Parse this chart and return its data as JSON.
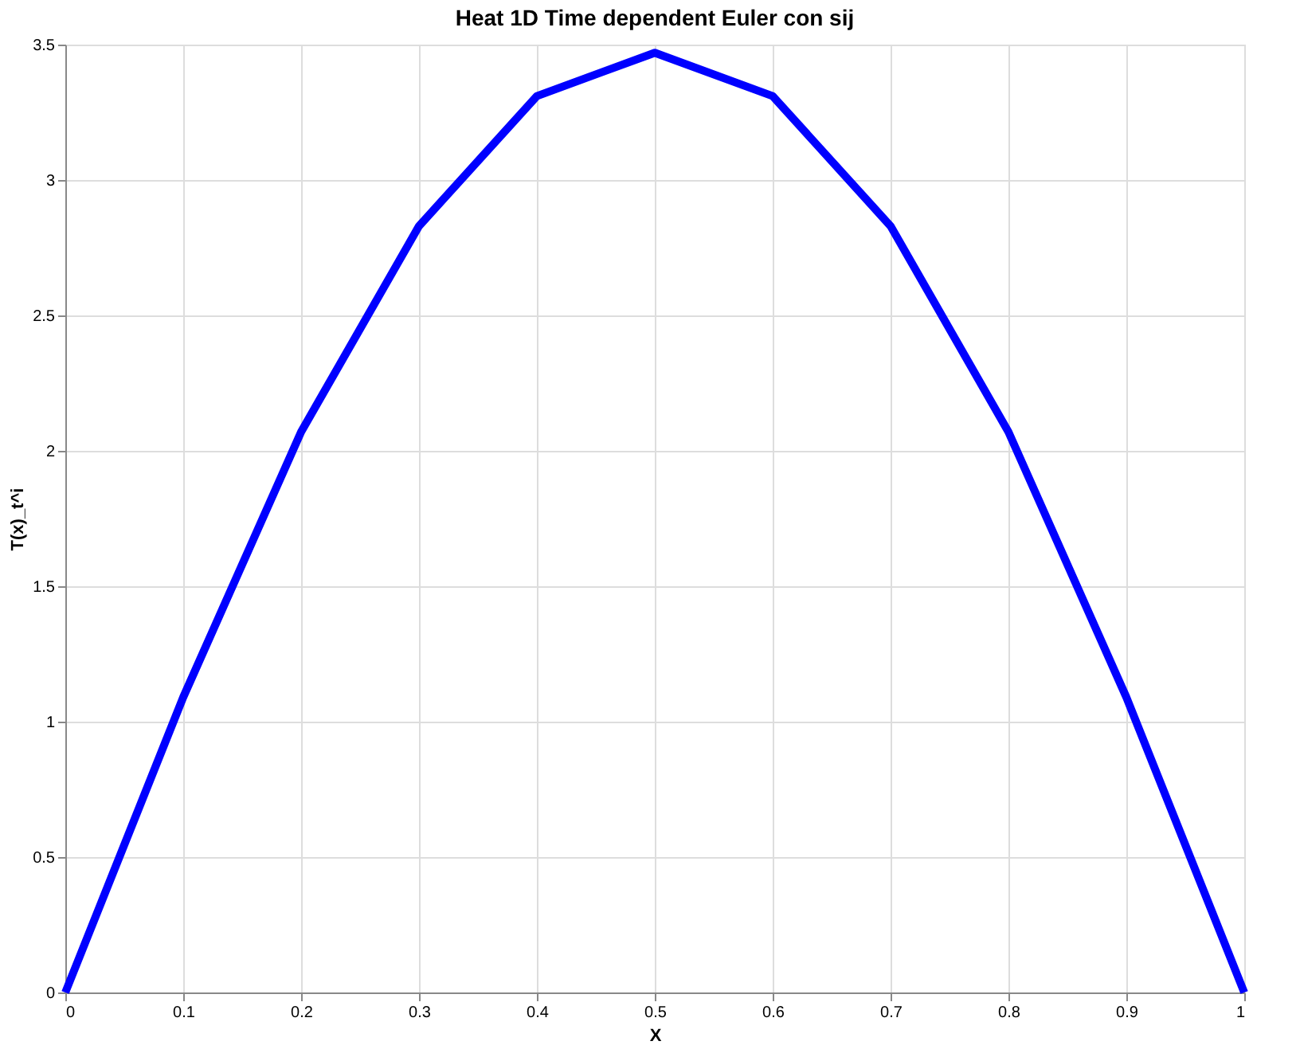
{
  "chart_data": {
    "type": "line",
    "title": "Heat 1D Time dependent Euler con sij",
    "xlabel": "X",
    "ylabel": "T(x)_t^i",
    "x": [
      0,
      0.1,
      0.2,
      0.3,
      0.4,
      0.5,
      0.6,
      0.7,
      0.8,
      0.9,
      1
    ],
    "series": [
      {
        "color": "#0000ff",
        "values": [
          0,
          1.09,
          2.07,
          2.83,
          3.31,
          3.47,
          3.31,
          2.83,
          2.07,
          1.09,
          0
        ]
      }
    ],
    "xlim": [
      0,
      1
    ],
    "xticks": [
      0,
      0.1,
      0.2,
      0.3,
      0.4,
      0.5,
      0.6,
      0.7,
      0.8,
      0.9,
      1
    ],
    "ylim": [
      0,
      3.5
    ],
    "yticks": [
      0,
      0.5,
      1,
      1.5,
      2,
      2.5,
      3,
      3.5
    ],
    "grid": true,
    "line_style": "solid",
    "marker": "none"
  }
}
